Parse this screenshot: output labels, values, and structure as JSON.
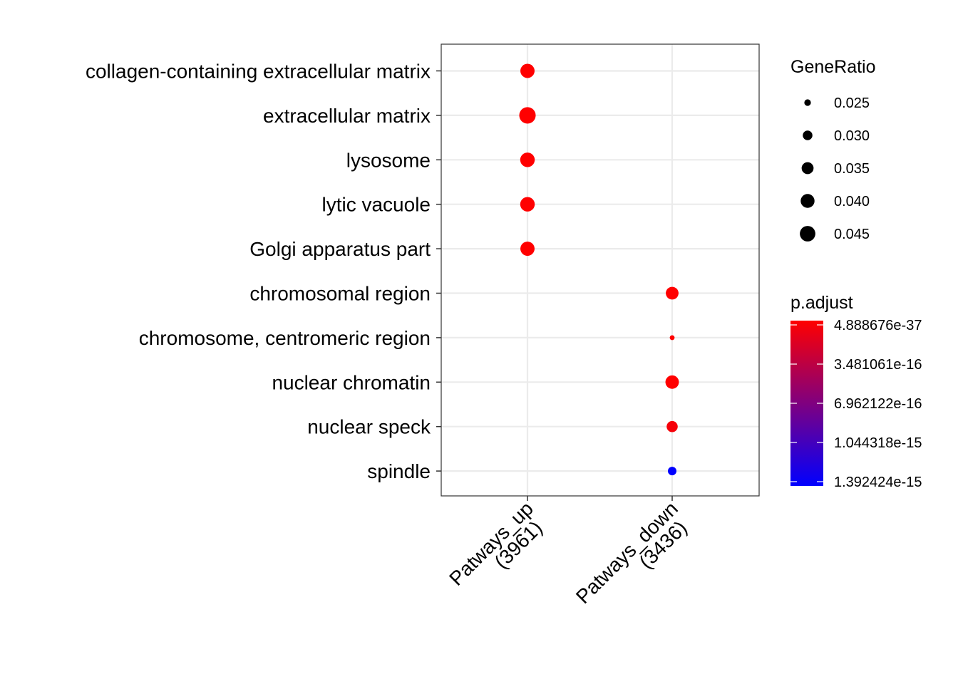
{
  "chart_data": {
    "type": "scatter",
    "title": "",
    "xlabel": "",
    "ylabel": "",
    "x_categories": [
      {
        "line1": "Patways_up",
        "line2": "(3961)"
      },
      {
        "line1": "Patways_down",
        "line2": "(3436)"
      }
    ],
    "y_categories": [
      "collagen-containing extracellular matrix",
      "extracellular matrix",
      "lysosome",
      "lytic vacuole",
      "Golgi apparatus part",
      "chromosomal region",
      "chromosome, centromeric region",
      "nuclear chromatin",
      "nuclear speck",
      "spindle"
    ],
    "points": [
      {
        "x": "Patways_up",
        "y": "collagen-containing extracellular matrix",
        "gene_ratio": 0.041,
        "p_adjust": 1e-30
      },
      {
        "x": "Patways_up",
        "y": "extracellular matrix",
        "gene_ratio": 0.048,
        "p_adjust": 1e-30
      },
      {
        "x": "Patways_up",
        "y": "lysosome",
        "gene_ratio": 0.042,
        "p_adjust": 1e-30
      },
      {
        "x": "Patways_up",
        "y": "lytic vacuole",
        "gene_ratio": 0.042,
        "p_adjust": 1e-30
      },
      {
        "x": "Patways_up",
        "y": "Golgi apparatus part",
        "gene_ratio": 0.041,
        "p_adjust": 1e-30
      },
      {
        "x": "Patways_down",
        "y": "chromosomal region",
        "gene_ratio": 0.037,
        "p_adjust": 1e-20
      },
      {
        "x": "Patways_down",
        "y": "chromosome, centromeric region",
        "gene_ratio": 0.023,
        "p_adjust": 1e-20
      },
      {
        "x": "Patways_down",
        "y": "nuclear chromatin",
        "gene_ratio": 0.039,
        "p_adjust": 1e-20
      },
      {
        "x": "Patways_down",
        "y": "nuclear speck",
        "gene_ratio": 0.033,
        "p_adjust": 5e-17
      },
      {
        "x": "Patways_down",
        "y": "spindle",
        "gene_ratio": 0.028,
        "p_adjust": 1.392424e-15
      }
    ],
    "legend_size": {
      "title": "GeneRatio",
      "values": [
        0.025,
        0.03,
        0.035,
        0.04,
        0.045
      ],
      "labels": [
        "0.025",
        "0.030",
        "0.035",
        "0.040",
        "0.045"
      ]
    },
    "legend_color": {
      "title": "p.adjust",
      "low_color": "#FF0000",
      "high_color": "#0000FF",
      "min": 4.888676e-37,
      "max": 1.392424e-15,
      "breaks": [
        4.888676e-37,
        3.481061e-16,
        6.962122e-16,
        1.044318e-15,
        1.392424e-15
      ],
      "labels": [
        "4.888676e-37",
        "3.481061e-16",
        "6.962122e-16",
        "1.044318e-15",
        "1.392424e-15"
      ]
    },
    "grid": true,
    "legend_position": "right"
  }
}
